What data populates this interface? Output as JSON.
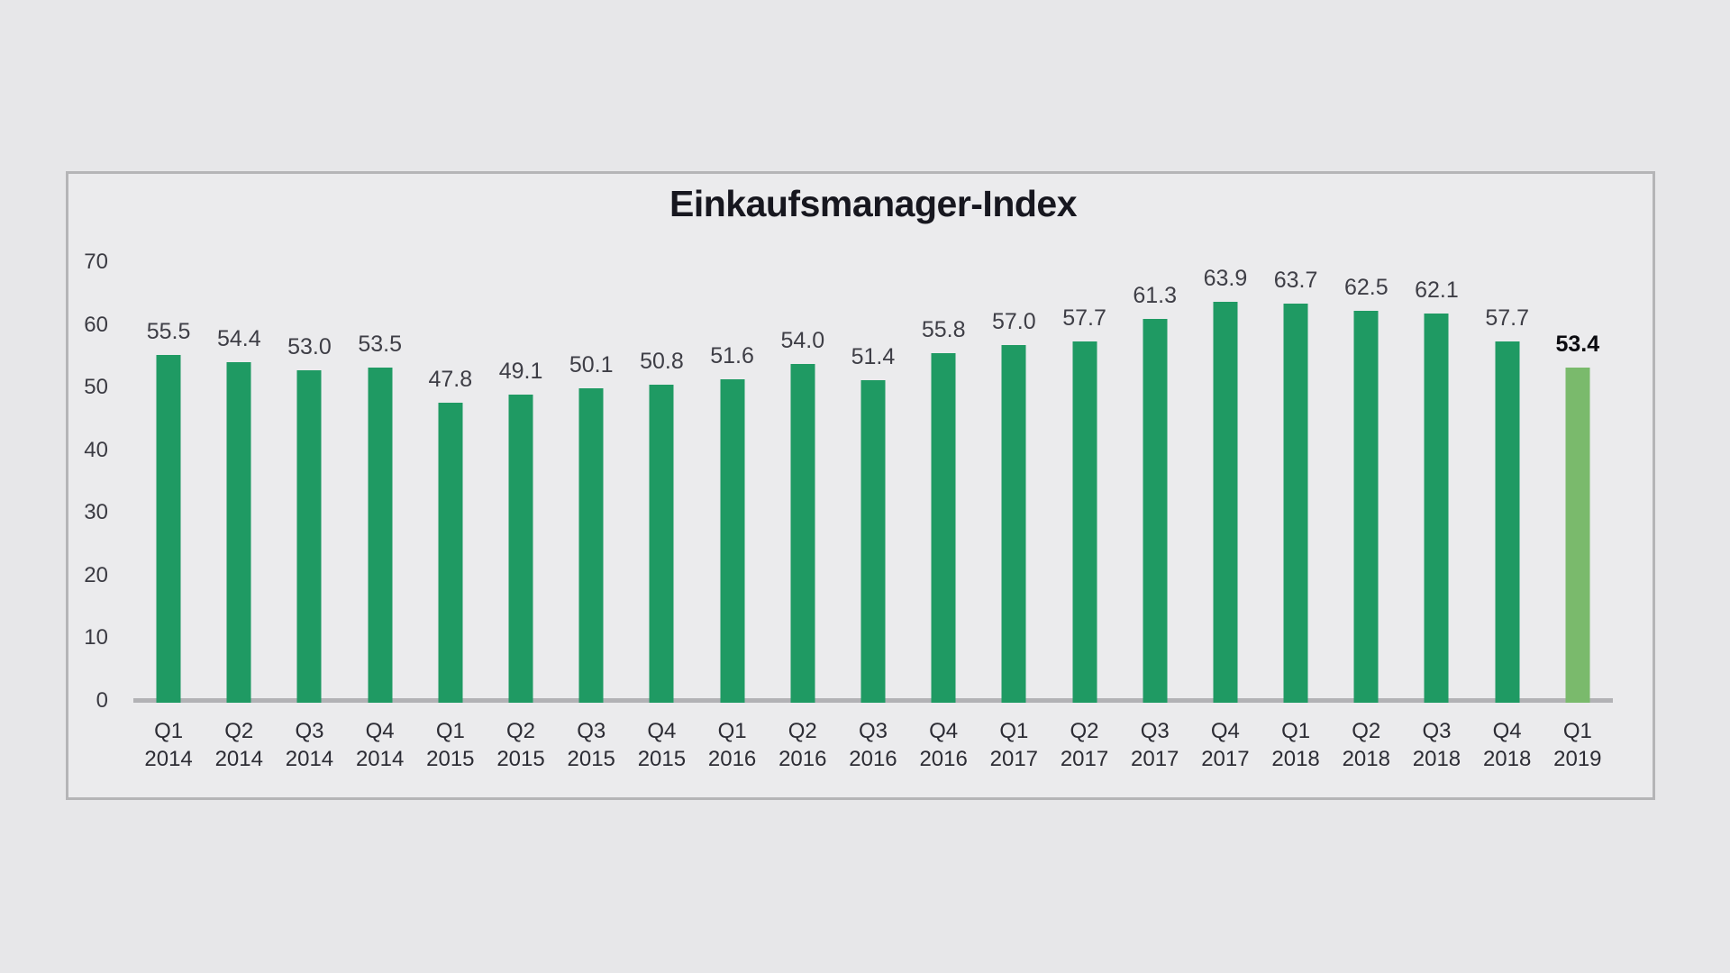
{
  "chart_data": {
    "type": "bar",
    "title": "Einkaufsmanager-Index",
    "categories": [
      "Q1 2014",
      "Q2 2014",
      "Q3 2014",
      "Q4 2014",
      "Q1 2015",
      "Q2 2015",
      "Q3 2015",
      "Q4 2015",
      "Q1 2016",
      "Q2 2016",
      "Q3 2016",
      "Q4 2016",
      "Q1 2017",
      "Q2 2017",
      "Q3 2017",
      "Q4 2017",
      "Q1 2018",
      "Q2 2018",
      "Q3 2018",
      "Q4 2018",
      "Q1 2019"
    ],
    "values": [
      55.5,
      54.4,
      53.0,
      53.5,
      47.8,
      49.1,
      50.1,
      50.8,
      51.6,
      54.0,
      51.4,
      55.8,
      57.0,
      57.7,
      61.3,
      63.9,
      63.7,
      62.5,
      62.1,
      57.7,
      53.4
    ],
    "value_labels": true,
    "xlabel": "",
    "ylabel": "",
    "ylim": [
      0,
      70
    ],
    "yticks": [
      0,
      10,
      20,
      30,
      40,
      50,
      60,
      70
    ],
    "grid": false,
    "legend": "none",
    "bar_color": "#1f9a63",
    "highlight_color": "#7aba6c",
    "highlight_index": 20
  }
}
